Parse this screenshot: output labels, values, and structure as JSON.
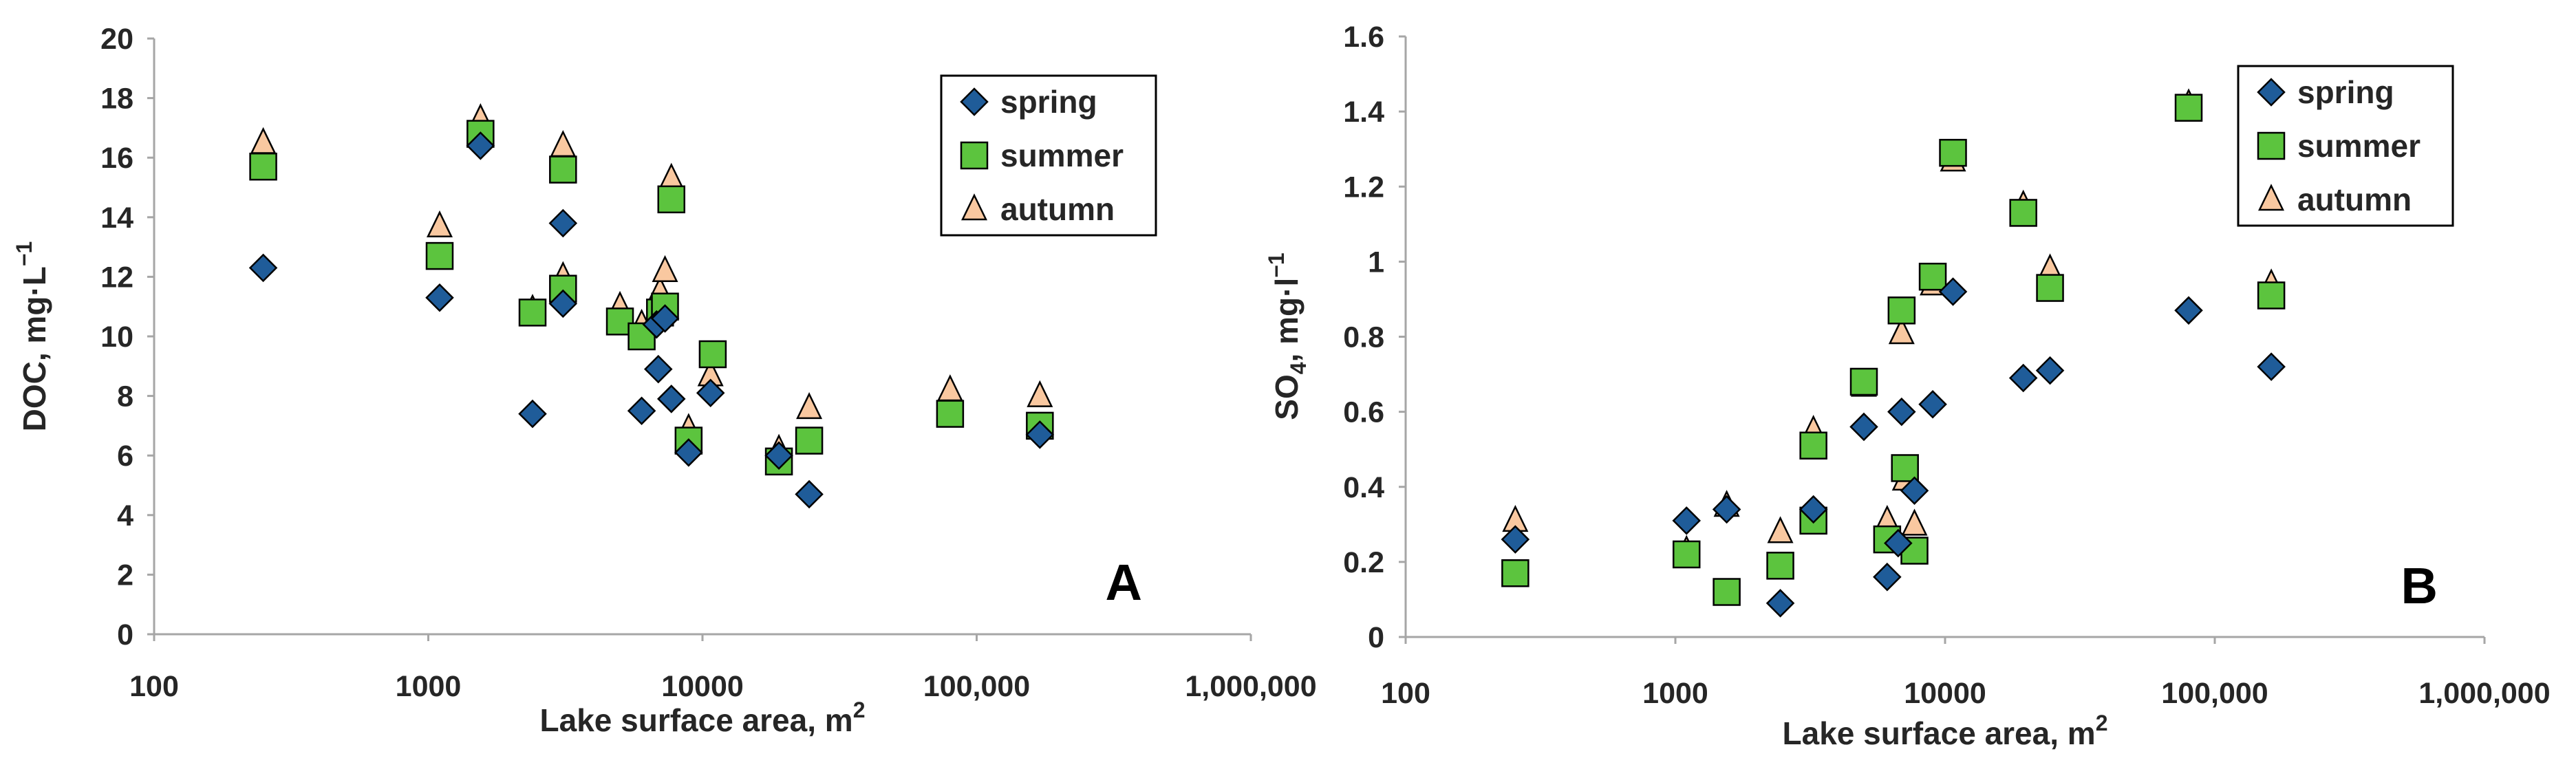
{
  "chart_data": [
    {
      "type": "scatter",
      "panel_label": "A",
      "xlabel": "Lake surface area, m",
      "xlabel_sup": "2",
      "ylabel": "DOC, mg·L",
      "ylabel_sup": "−1",
      "x_scale": "log",
      "xlim": [
        100,
        1000000
      ],
      "x_ticks": [
        "100",
        "1000",
        "10000",
        "100,000",
        "1,000,000"
      ],
      "ylim": [
        0,
        20
      ],
      "y_ticks": [
        "0",
        "2",
        "4",
        "6",
        "8",
        "10",
        "12",
        "14",
        "16",
        "18",
        "20"
      ],
      "grid": false,
      "legend_position": "top-right",
      "series": [
        {
          "name": "spring",
          "marker": "diamond",
          "color": "#1F5C99",
          "x": [
            250,
            1100,
            1550,
            2400,
            3100,
            3100,
            6000,
            6800,
            6900,
            7300,
            7700,
            8900,
            10700,
            19000,
            24500,
            170000
          ],
          "y": [
            12.3,
            11.3,
            16.4,
            7.4,
            13.8,
            11.1,
            7.5,
            10.4,
            8.9,
            10.6,
            7.9,
            6.1,
            8.1,
            6.0,
            4.7,
            6.7
          ]
        },
        {
          "name": "summer",
          "marker": "square",
          "color": "#5CC43E",
          "x": [
            250,
            1100,
            1550,
            2400,
            3100,
            3100,
            5000,
            6000,
            7000,
            7300,
            7700,
            8900,
            10900,
            19000,
            24500,
            80000,
            170000
          ],
          "y": [
            15.7,
            12.7,
            16.8,
            10.8,
            15.6,
            11.6,
            10.5,
            10.0,
            10.8,
            11.0,
            14.6,
            6.5,
            9.4,
            5.8,
            6.5,
            7.4,
            7.0
          ]
        },
        {
          "name": "autumn",
          "marker": "triangle",
          "color": "#F9C8A0",
          "x": [
            250,
            1100,
            1550,
            2400,
            3100,
            3100,
            5000,
            6000,
            7000,
            7300,
            7700,
            8900,
            10700,
            19000,
            24500,
            80000,
            170000
          ],
          "y": [
            16.5,
            13.7,
            17.3,
            10.9,
            16.4,
            12.0,
            11.0,
            10.4,
            11.5,
            12.2,
            15.3,
            6.9,
            8.7,
            6.2,
            7.6,
            8.2,
            8.0
          ]
        }
      ]
    },
    {
      "type": "scatter",
      "panel_label": "B",
      "xlabel": "Lake surface area, m",
      "xlabel_sup": "2",
      "ylabel_main": "SO",
      "ylabel_sub": "4",
      "ylabel_rest": ", mg·l",
      "ylabel_sup": "−1",
      "x_scale": "log",
      "xlim": [
        100,
        1000000
      ],
      "x_ticks": [
        "100",
        "1000",
        "10000",
        "100,000",
        "1,000,000"
      ],
      "ylim": [
        0,
        1.6
      ],
      "y_ticks": [
        "0",
        "0.2",
        "0.4",
        "0.6",
        "0.8",
        "1",
        "1.2",
        "1.4",
        "1.6"
      ],
      "grid": false,
      "legend_position": "top-right",
      "series": [
        {
          "name": "spring",
          "marker": "diamond",
          "color": "#1F5C99",
          "x": [
            255,
            1100,
            1550,
            2450,
            3250,
            5000,
            6100,
            6700,
            6900,
            7700,
            9000,
            10700,
            19500,
            24500,
            80000,
            162000
          ],
          "y": [
            0.26,
            0.31,
            0.34,
            0.09,
            0.34,
            0.56,
            0.16,
            0.25,
            0.6,
            0.39,
            0.62,
            0.92,
            0.69,
            0.71,
            0.87,
            0.72
          ]
        },
        {
          "name": "summer",
          "marker": "square",
          "color": "#5CC43E",
          "x": [
            255,
            1100,
            1550,
            2450,
            3250,
            3250,
            5000,
            6100,
            6900,
            7100,
            7700,
            9000,
            10700,
            19500,
            24500,
            80000,
            162000
          ],
          "y": [
            0.17,
            0.22,
            0.12,
            0.19,
            0.51,
            0.31,
            0.68,
            0.26,
            0.87,
            0.45,
            0.23,
            0.96,
            1.29,
            1.13,
            0.93,
            1.41,
            0.91
          ]
        },
        {
          "name": "autumn",
          "marker": "triangle",
          "color": "#F9C8A0",
          "x": [
            255,
            1100,
            1550,
            2450,
            3250,
            3250,
            5000,
            6100,
            6900,
            7100,
            7700,
            9000,
            10700,
            19500,
            24500,
            80000,
            162000
          ],
          "y": [
            0.31,
            0.23,
            0.35,
            0.28,
            0.55,
            0.33,
            0.67,
            0.31,
            0.81,
            0.42,
            0.3,
            0.94,
            1.27,
            1.15,
            0.98,
            1.42,
            0.94
          ]
        }
      ]
    }
  ]
}
